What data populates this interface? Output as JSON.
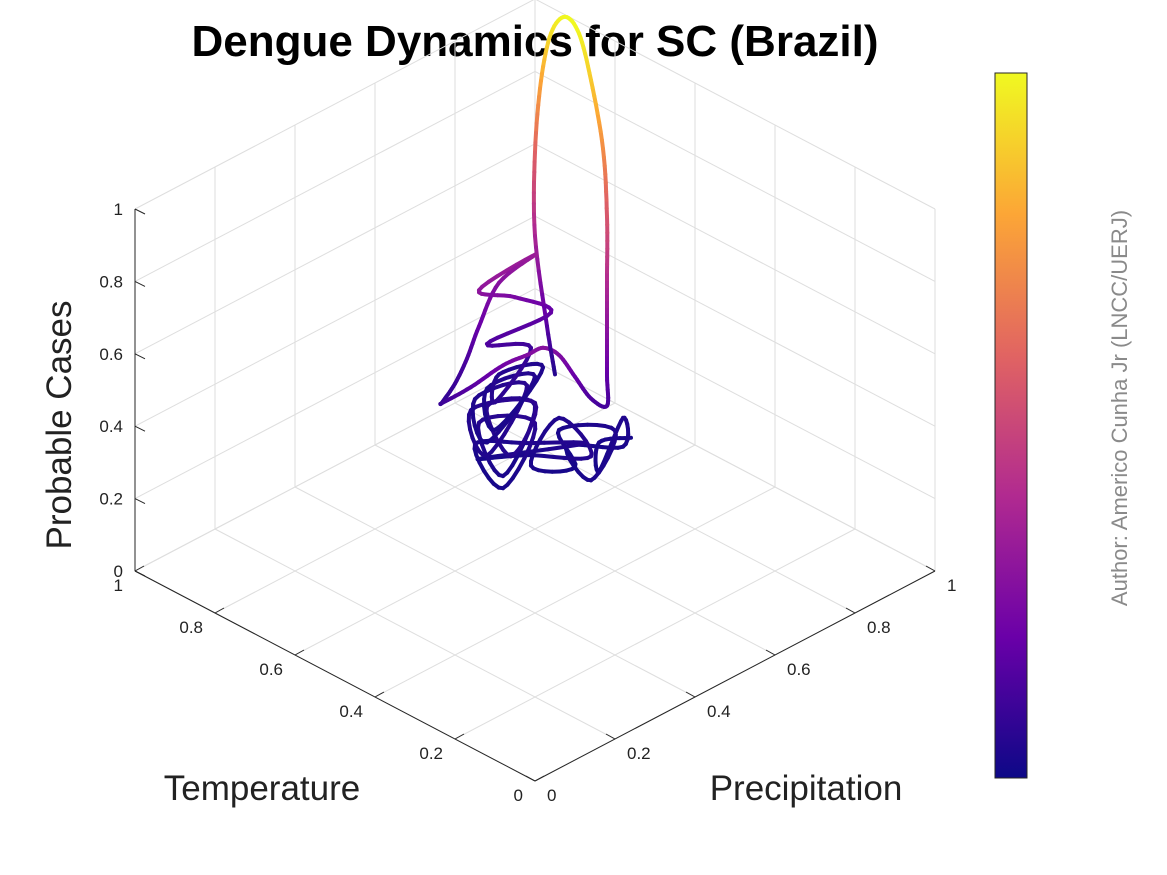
{
  "chart_data": {
    "type": "line",
    "title": "Dengue Dynamics for SC (Brazil)",
    "xlabel": "Temperature",
    "ylabel": "Precipitation",
    "zlabel": "Probable Cases",
    "xlim": [
      0,
      1
    ],
    "ylim": [
      0,
      1
    ],
    "zlim": [
      0,
      1
    ],
    "x_ticks": [
      "0",
      "0.2",
      "0.4",
      "0.6",
      "0.8",
      "1"
    ],
    "y_ticks": [
      "0",
      "0.2",
      "0.4",
      "0.6",
      "0.8",
      "1"
    ],
    "z_ticks": [
      "0",
      "0.2",
      "0.4",
      "0.6",
      "0.8",
      "1"
    ],
    "grid": true,
    "colormap": "plasma",
    "colormap_stops": [
      "#0d0887",
      "#6a00a8",
      "#b12a90",
      "#e16462",
      "#fca636",
      "#f0f921"
    ],
    "colorbar": true,
    "annotation": "Author: Americo Cunha Jr (LNCC/UERJ)",
    "trajectory": {
      "x": [
        0.68,
        0.7,
        0.64,
        0.72,
        0.66,
        0.74,
        0.62,
        0.7,
        0.78,
        0.68,
        0.73,
        0.8,
        0.66,
        0.76,
        0.82,
        0.7,
        0.78,
        0.85,
        0.72,
        0.8,
        0.88,
        0.74,
        0.86,
        0.9,
        0.76,
        0.84,
        0.92,
        0.8,
        0.9,
        0.95,
        0.84,
        0.92,
        0.96,
        0.86,
        0.94,
        0.97,
        0.9,
        0.95,
        0.98,
        0.94,
        0.97,
        0.98,
        0.96,
        0.99,
        0.98,
        0.97,
        0.96,
        0.95,
        0.93,
        0.88,
        0.84,
        0.8,
        0.78,
        0.76,
        0.74,
        0.72,
        0.7,
        0.72,
        0.74,
        0.76,
        0.78,
        0.8,
        0.84,
        0.88,
        0.92,
        0.95,
        0.97,
        0.98,
        0.97,
        0.93,
        0.9
      ],
      "y": [
        0.92,
        0.86,
        0.8,
        0.94,
        0.88,
        0.82,
        0.76,
        0.9,
        0.84,
        0.78,
        0.72,
        0.86,
        0.8,
        0.74,
        0.68,
        0.82,
        0.76,
        0.7,
        0.64,
        0.8,
        0.74,
        0.66,
        0.86,
        0.78,
        0.7,
        0.84,
        0.76,
        0.68,
        0.88,
        0.8,
        0.72,
        0.92,
        0.84,
        0.76,
        0.96,
        0.88,
        0.8,
        0.94,
        0.86,
        0.98,
        0.92,
        0.84,
        0.96,
        0.9,
        0.84,
        0.8,
        0.76,
        0.72,
        0.7,
        0.72,
        0.76,
        0.78,
        0.8,
        0.82,
        0.84,
        0.86,
        0.88,
        0.9,
        0.92,
        0.94,
        0.96,
        0.97,
        0.98,
        0.99,
        0.995,
        0.99,
        0.985,
        0.98,
        0.97,
        0.96,
        0.95
      ],
      "z": [
        0.02,
        0.03,
        0.02,
        0.04,
        0.03,
        0.02,
        0.03,
        0.04,
        0.03,
        0.02,
        0.03,
        0.04,
        0.05,
        0.03,
        0.02,
        0.05,
        0.04,
        0.03,
        0.02,
        0.06,
        0.05,
        0.03,
        0.04,
        0.06,
        0.05,
        0.07,
        0.05,
        0.04,
        0.06,
        0.04,
        0.03,
        0.05,
        0.04,
        0.03,
        0.04,
        0.05,
        0.06,
        0.1,
        0.14,
        0.18,
        0.24,
        0.3,
        0.34,
        0.28,
        0.2,
        0.14,
        0.1,
        0.08,
        0.1,
        0.16,
        0.22,
        0.26,
        0.28,
        0.26,
        0.2,
        0.14,
        0.12,
        0.18,
        0.28,
        0.4,
        0.55,
        0.72,
        0.88,
        0.98,
        1.0,
        0.94,
        0.8,
        0.6,
        0.38,
        0.16,
        0.05
      ]
    }
  }
}
